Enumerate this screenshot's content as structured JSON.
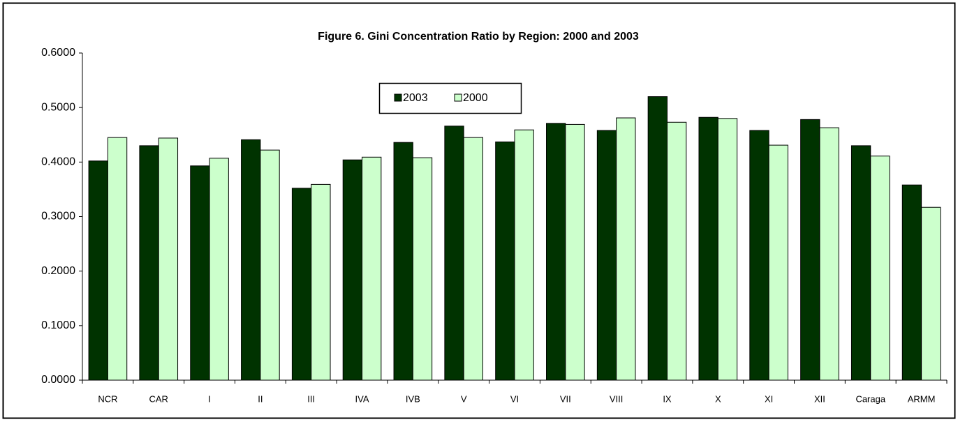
{
  "chart_data": {
    "type": "bar",
    "title": "Figure 6. Gini Concentration Ratio by Region: 2000 and 2003",
    "categories": [
      "NCR",
      "CAR",
      "I",
      "II",
      "III",
      "IVA",
      "IVB",
      "V",
      "VI",
      "VII",
      "VIII",
      "IX",
      "X",
      "XI",
      "XII",
      "Caraga",
      "ARMM"
    ],
    "series": [
      {
        "name": "2003",
        "color": "#003300",
        "values": [
          0.402,
          0.43,
          0.393,
          0.441,
          0.352,
          0.404,
          0.436,
          0.466,
          0.437,
          0.471,
          0.458,
          0.52,
          0.482,
          0.458,
          0.478,
          0.43,
          0.358
        ]
      },
      {
        "name": "2000",
        "color": "#ccffcc",
        "values": [
          0.445,
          0.444,
          0.407,
          0.422,
          0.359,
          0.409,
          0.408,
          0.445,
          0.459,
          0.469,
          0.481,
          0.473,
          0.48,
          0.431,
          0.463,
          0.411,
          0.317
        ]
      }
    ],
    "ylim": [
      0,
      0.6
    ],
    "yticks": [
      {
        "value": 0,
        "label": "0.0000"
      },
      {
        "value": 0.1,
        "label": "0.1000"
      },
      {
        "value": 0.2,
        "label": "0.2000"
      },
      {
        "value": 0.3,
        "label": "0.3000"
      },
      {
        "value": 0.4,
        "label": "0.4000"
      },
      {
        "value": 0.5,
        "label": "0.5000"
      },
      {
        "value": 0.6,
        "label": "0.6000"
      }
    ],
    "grid": false,
    "legend": "top"
  }
}
